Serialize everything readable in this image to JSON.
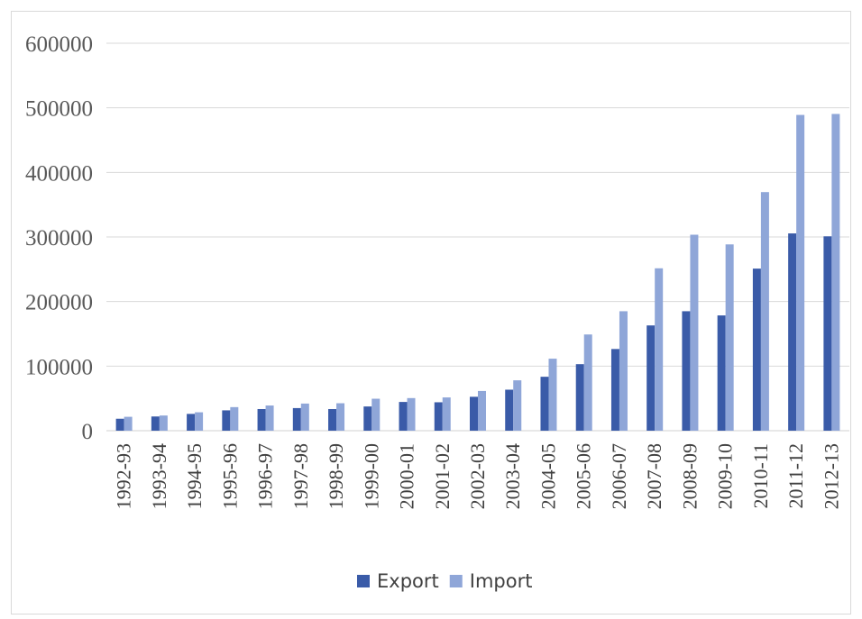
{
  "chart_data": {
    "type": "bar",
    "categories": [
      "1992-93",
      "1993-94",
      "1994-95",
      "1995-96",
      "1996-97",
      "1997-98",
      "1998-99",
      "1999-00",
      "2000-01",
      "2001-02",
      "2002-03",
      "2003-04",
      "2004-05",
      "2005-06",
      "2006-07",
      "2007-08",
      "2008-09",
      "2009-10",
      "2010-11",
      "2011-12",
      "2012-13"
    ],
    "series": [
      {
        "name": "Export",
        "color": "#3a5ba8",
        "values": [
          18500,
          22000,
          26000,
          31500,
          33500,
          35000,
          33500,
          37500,
          44500,
          44000,
          52500,
          63500,
          83500,
          103000,
          126500,
          163000,
          185000,
          178500,
          251000,
          305500,
          301000
        ]
      },
      {
        "name": "Import",
        "color": "#8fa6d8",
        "values": [
          21500,
          23500,
          28500,
          36500,
          39000,
          42000,
          42500,
          49500,
          50500,
          51500,
          61500,
          78000,
          111500,
          149000,
          185000,
          251500,
          303500,
          288500,
          369500,
          489000,
          490500
        ]
      }
    ],
    "ylim": [
      0,
      600000
    ],
    "yticks": [
      "0",
      "100000",
      "200000",
      "300000",
      "400000",
      "500000",
      "600000"
    ],
    "grid": true,
    "legend_position": "bottom"
  }
}
